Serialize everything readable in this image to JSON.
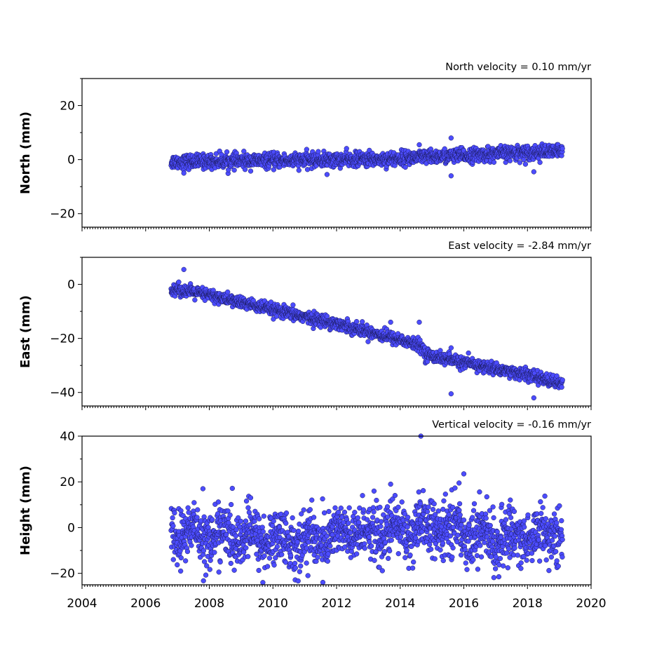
{
  "colors": {
    "marker_fill": "#4c4cff",
    "marker_edge": "#1a1a5a",
    "axes": "#000000"
  },
  "chart_data": [
    {
      "type": "scatter",
      "title": "North velocity = 0.10 mm/yr",
      "ylabel": "North (mm)",
      "xlim": [
        2004,
        2020
      ],
      "ylim": [
        -25,
        30
      ],
      "yticks": [
        -20,
        0,
        20
      ],
      "ytick_labels": [
        "−20",
        "0",
        "20"
      ],
      "x_span": [
        2006.8,
        2019.1
      ],
      "trend": [
        {
          "x": 2006.8,
          "y": -0.8
        },
        {
          "x": 2010.0,
          "y": -0.4
        },
        {
          "x": 2013.5,
          "y": 0.2
        },
        {
          "x": 2014.5,
          "y": 0.8
        },
        {
          "x": 2016.0,
          "y": 1.5
        },
        {
          "x": 2017.5,
          "y": 2.5
        },
        {
          "x": 2019.1,
          "y": 3.0
        }
      ],
      "spread_sd": 1.3,
      "outliers": [
        {
          "x": 2015.6,
          "y": 8.0
        },
        {
          "x": 2015.6,
          "y": -6.0
        },
        {
          "x": 2018.2,
          "y": -4.5
        },
        {
          "x": 2007.2,
          "y": -5.0
        },
        {
          "x": 2011.7,
          "y": -5.5
        },
        {
          "x": 2014.6,
          "y": 5.5
        }
      ]
    },
    {
      "type": "scatter",
      "title": "East velocity = -2.84 mm/yr",
      "ylabel": "East (mm)",
      "xlim": [
        2004,
        2020
      ],
      "ylim": [
        -45,
        10
      ],
      "yticks": [
        -40,
        -20,
        0
      ],
      "ytick_labels": [
        "−40",
        "−20",
        "0"
      ],
      "x_span": [
        2006.8,
        2019.1
      ],
      "trend": [
        {
          "x": 2006.8,
          "y": -1.5
        },
        {
          "x": 2008.0,
          "y": -4.0
        },
        {
          "x": 2010.0,
          "y": -9.5
        },
        {
          "x": 2012.0,
          "y": -14.5
        },
        {
          "x": 2014.0,
          "y": -20.5
        },
        {
          "x": 2014.7,
          "y": -23.0
        },
        {
          "x": 2014.8,
          "y": -26.0
        },
        {
          "x": 2016.0,
          "y": -29.0
        },
        {
          "x": 2018.0,
          "y": -33.5
        },
        {
          "x": 2019.1,
          "y": -37.0
        }
      ],
      "spread_sd": 1.1,
      "outliers": [
        {
          "x": 2007.2,
          "y": 5.5
        },
        {
          "x": 2015.6,
          "y": -40.5
        },
        {
          "x": 2018.2,
          "y": -42.0
        },
        {
          "x": 2014.6,
          "y": -14.0
        },
        {
          "x": 2013.7,
          "y": -14.0
        },
        {
          "x": 2015.6,
          "y": -23.5
        }
      ]
    },
    {
      "type": "scatter",
      "title": "Vertical velocity = -0.16 mm/yr",
      "ylabel": "Height (mm)",
      "xlim": [
        2004,
        2020
      ],
      "ylim": [
        -25,
        40
      ],
      "yticks": [
        -20,
        0,
        20,
        40
      ],
      "ytick_labels": [
        "−20",
        "0",
        "20",
        "40"
      ],
      "x_span": [
        2006.8,
        2019.1
      ],
      "trend": [
        {
          "x": 2006.8,
          "y": -2.0
        },
        {
          "x": 2011.0,
          "y": -6.0
        },
        {
          "x": 2012.0,
          "y": -3.0
        },
        {
          "x": 2015.5,
          "y": 0.0
        },
        {
          "x": 2017.0,
          "y": -5.0
        },
        {
          "x": 2019.1,
          "y": -2.0
        }
      ],
      "spread_sd": 6.0,
      "outliers": [
        {
          "x": 2014.65,
          "y": 40.0
        },
        {
          "x": 2016.0,
          "y": 23.5
        },
        {
          "x": 2015.85,
          "y": 19.5
        },
        {
          "x": 2007.8,
          "y": 17.0
        },
        {
          "x": 2013.7,
          "y": 19.0
        },
        {
          "x": 2011.1,
          "y": -21.0
        },
        {
          "x": 2017.1,
          "y": -21.5
        },
        {
          "x": 2007.1,
          "y": -19.0
        }
      ]
    }
  ],
  "xaxis": {
    "ticks": [
      2004,
      2006,
      2008,
      2010,
      2012,
      2014,
      2016,
      2018,
      2020
    ],
    "tick_labels": [
      "2004",
      "2006",
      "2008",
      "2010",
      "2012",
      "2014",
      "2016",
      "2018",
      "2020"
    ]
  }
}
